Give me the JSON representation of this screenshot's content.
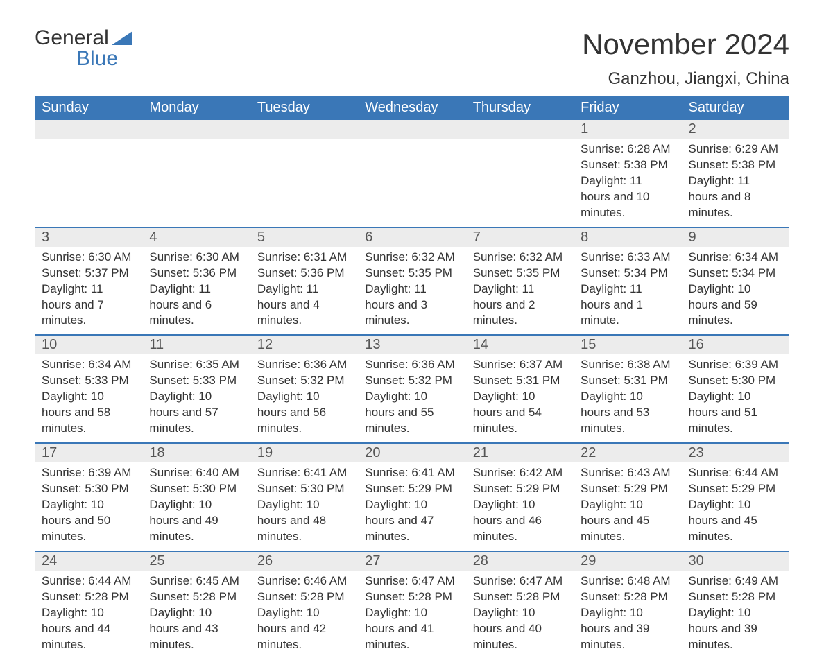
{
  "logo": {
    "text1": "General",
    "text2": "Blue",
    "accent_color": "#3a77b7"
  },
  "title": "November 2024",
  "location": "Ganzhou, Jiangxi, China",
  "colors": {
    "header_bg": "#3a77b7",
    "header_text": "#ffffff",
    "daynum_bg": "#ececec",
    "border_top": "#3a77b7",
    "body_text": "#333333",
    "background": "#ffffff"
  },
  "fonts": {
    "title_size": 42,
    "location_size": 24,
    "dayhead_size": 20,
    "cell_size": 17
  },
  "day_headers": [
    "Sunday",
    "Monday",
    "Tuesday",
    "Wednesday",
    "Thursday",
    "Friday",
    "Saturday"
  ],
  "weeks": [
    [
      null,
      null,
      null,
      null,
      null,
      {
        "n": "1",
        "sunrise": "Sunrise: 6:28 AM",
        "sunset": "Sunset: 5:38 PM",
        "daylight": "Daylight: 11 hours and 10 minutes."
      },
      {
        "n": "2",
        "sunrise": "Sunrise: 6:29 AM",
        "sunset": "Sunset: 5:38 PM",
        "daylight": "Daylight: 11 hours and 8 minutes."
      }
    ],
    [
      {
        "n": "3",
        "sunrise": "Sunrise: 6:30 AM",
        "sunset": "Sunset: 5:37 PM",
        "daylight": "Daylight: 11 hours and 7 minutes."
      },
      {
        "n": "4",
        "sunrise": "Sunrise: 6:30 AM",
        "sunset": "Sunset: 5:36 PM",
        "daylight": "Daylight: 11 hours and 6 minutes."
      },
      {
        "n": "5",
        "sunrise": "Sunrise: 6:31 AM",
        "sunset": "Sunset: 5:36 PM",
        "daylight": "Daylight: 11 hours and 4 minutes."
      },
      {
        "n": "6",
        "sunrise": "Sunrise: 6:32 AM",
        "sunset": "Sunset: 5:35 PM",
        "daylight": "Daylight: 11 hours and 3 minutes."
      },
      {
        "n": "7",
        "sunrise": "Sunrise: 6:32 AM",
        "sunset": "Sunset: 5:35 PM",
        "daylight": "Daylight: 11 hours and 2 minutes."
      },
      {
        "n": "8",
        "sunrise": "Sunrise: 6:33 AM",
        "sunset": "Sunset: 5:34 PM",
        "daylight": "Daylight: 11 hours and 1 minute."
      },
      {
        "n": "9",
        "sunrise": "Sunrise: 6:34 AM",
        "sunset": "Sunset: 5:34 PM",
        "daylight": "Daylight: 10 hours and 59 minutes."
      }
    ],
    [
      {
        "n": "10",
        "sunrise": "Sunrise: 6:34 AM",
        "sunset": "Sunset: 5:33 PM",
        "daylight": "Daylight: 10 hours and 58 minutes."
      },
      {
        "n": "11",
        "sunrise": "Sunrise: 6:35 AM",
        "sunset": "Sunset: 5:33 PM",
        "daylight": "Daylight: 10 hours and 57 minutes."
      },
      {
        "n": "12",
        "sunrise": "Sunrise: 6:36 AM",
        "sunset": "Sunset: 5:32 PM",
        "daylight": "Daylight: 10 hours and 56 minutes."
      },
      {
        "n": "13",
        "sunrise": "Sunrise: 6:36 AM",
        "sunset": "Sunset: 5:32 PM",
        "daylight": "Daylight: 10 hours and 55 minutes."
      },
      {
        "n": "14",
        "sunrise": "Sunrise: 6:37 AM",
        "sunset": "Sunset: 5:31 PM",
        "daylight": "Daylight: 10 hours and 54 minutes."
      },
      {
        "n": "15",
        "sunrise": "Sunrise: 6:38 AM",
        "sunset": "Sunset: 5:31 PM",
        "daylight": "Daylight: 10 hours and 53 minutes."
      },
      {
        "n": "16",
        "sunrise": "Sunrise: 6:39 AM",
        "sunset": "Sunset: 5:30 PM",
        "daylight": "Daylight: 10 hours and 51 minutes."
      }
    ],
    [
      {
        "n": "17",
        "sunrise": "Sunrise: 6:39 AM",
        "sunset": "Sunset: 5:30 PM",
        "daylight": "Daylight: 10 hours and 50 minutes."
      },
      {
        "n": "18",
        "sunrise": "Sunrise: 6:40 AM",
        "sunset": "Sunset: 5:30 PM",
        "daylight": "Daylight: 10 hours and 49 minutes."
      },
      {
        "n": "19",
        "sunrise": "Sunrise: 6:41 AM",
        "sunset": "Sunset: 5:30 PM",
        "daylight": "Daylight: 10 hours and 48 minutes."
      },
      {
        "n": "20",
        "sunrise": "Sunrise: 6:41 AM",
        "sunset": "Sunset: 5:29 PM",
        "daylight": "Daylight: 10 hours and 47 minutes."
      },
      {
        "n": "21",
        "sunrise": "Sunrise: 6:42 AM",
        "sunset": "Sunset: 5:29 PM",
        "daylight": "Daylight: 10 hours and 46 minutes."
      },
      {
        "n": "22",
        "sunrise": "Sunrise: 6:43 AM",
        "sunset": "Sunset: 5:29 PM",
        "daylight": "Daylight: 10 hours and 45 minutes."
      },
      {
        "n": "23",
        "sunrise": "Sunrise: 6:44 AM",
        "sunset": "Sunset: 5:29 PM",
        "daylight": "Daylight: 10 hours and 45 minutes."
      }
    ],
    [
      {
        "n": "24",
        "sunrise": "Sunrise: 6:44 AM",
        "sunset": "Sunset: 5:28 PM",
        "daylight": "Daylight: 10 hours and 44 minutes."
      },
      {
        "n": "25",
        "sunrise": "Sunrise: 6:45 AM",
        "sunset": "Sunset: 5:28 PM",
        "daylight": "Daylight: 10 hours and 43 minutes."
      },
      {
        "n": "26",
        "sunrise": "Sunrise: 6:46 AM",
        "sunset": "Sunset: 5:28 PM",
        "daylight": "Daylight: 10 hours and 42 minutes."
      },
      {
        "n": "27",
        "sunrise": "Sunrise: 6:47 AM",
        "sunset": "Sunset: 5:28 PM",
        "daylight": "Daylight: 10 hours and 41 minutes."
      },
      {
        "n": "28",
        "sunrise": "Sunrise: 6:47 AM",
        "sunset": "Sunset: 5:28 PM",
        "daylight": "Daylight: 10 hours and 40 minutes."
      },
      {
        "n": "29",
        "sunrise": "Sunrise: 6:48 AM",
        "sunset": "Sunset: 5:28 PM",
        "daylight": "Daylight: 10 hours and 39 minutes."
      },
      {
        "n": "30",
        "sunrise": "Sunrise: 6:49 AM",
        "sunset": "Sunset: 5:28 PM",
        "daylight": "Daylight: 10 hours and 39 minutes."
      }
    ]
  ]
}
